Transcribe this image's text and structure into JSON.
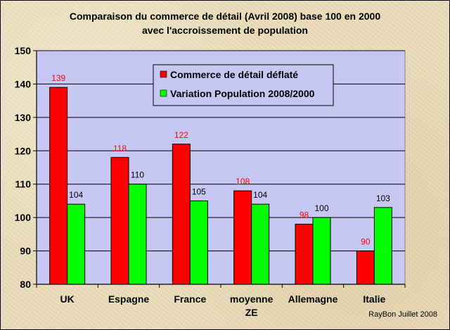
{
  "chart_data": {
    "type": "bar",
    "title": "Comparaison du commerce de détail (Avril 2008) base 100 en 2000",
    "subtitle": "avec l'accroissement de population",
    "categories": [
      [
        "UK"
      ],
      [
        "Espagne"
      ],
      [
        "France"
      ],
      [
        "moyenne",
        "ZE"
      ],
      [
        "Allemagne"
      ],
      [
        "Italie"
      ]
    ],
    "series": [
      {
        "name": "Commerce de détail déflaté",
        "values": [
          139,
          118,
          122,
          108,
          98,
          90
        ],
        "color": "#ff0000",
        "label_color": "#ff0000"
      },
      {
        "name": "Variation Population 2008/2000",
        "values": [
          104,
          110,
          105,
          104,
          100,
          103
        ],
        "color": "#00ff00",
        "label_color": "#000000"
      }
    ],
    "ylim": [
      80,
      150
    ],
    "yticks": [
      80,
      90,
      100,
      110,
      120,
      130,
      140,
      150
    ],
    "grid": true,
    "legend_position": "top-center",
    "plot_background": "#c7c7f4",
    "credit": "RayBon Juillet 2008"
  }
}
